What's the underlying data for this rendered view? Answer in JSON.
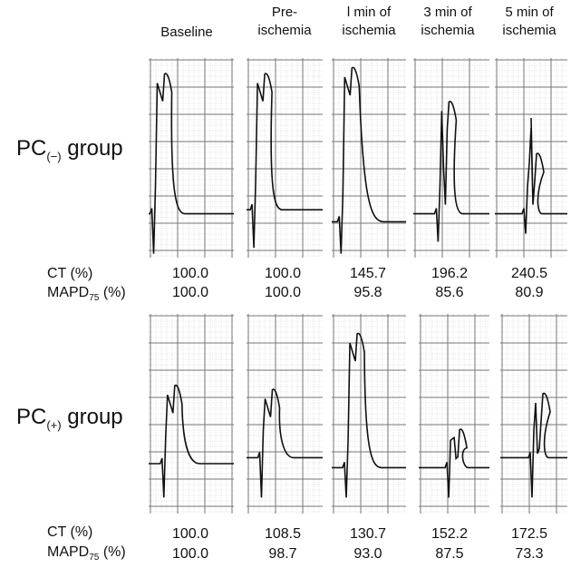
{
  "columns": [
    {
      "label": "Baseline"
    },
    {
      "label": "Pre-\nischemia"
    },
    {
      "label": "l min of\nischemia"
    },
    {
      "label": "3 min of\nischemia"
    },
    {
      "label": "5 min of\nischemia"
    }
  ],
  "groups": [
    {
      "name": "PC",
      "subscript": "(−)",
      "suffix": "group",
      "ct_label": "CT (%)",
      "mapd_label_main": "MAPD",
      "mapd_label_sub": "75",
      "mapd_label_tail": "(%)",
      "ct_values": [
        "100.0",
        "100.0",
        "145.7",
        "196.2",
        "240.5"
      ],
      "mapd_values": [
        "100.0",
        "100.0",
        "95.8",
        "85.6",
        "80.9"
      ]
    },
    {
      "name": "PC",
      "subscript": "(+)",
      "suffix": "group",
      "ct_label": "CT (%)",
      "mapd_label_main": "MAPD",
      "mapd_label_sub": "75",
      "mapd_label_tail": "(%)",
      "ct_values": [
        "100.0",
        "108.5",
        "130.7",
        "152.2",
        "172.5"
      ],
      "mapd_values": [
        "100.0",
        "98.7",
        "93.0",
        "87.5",
        "73.3"
      ]
    }
  ]
}
